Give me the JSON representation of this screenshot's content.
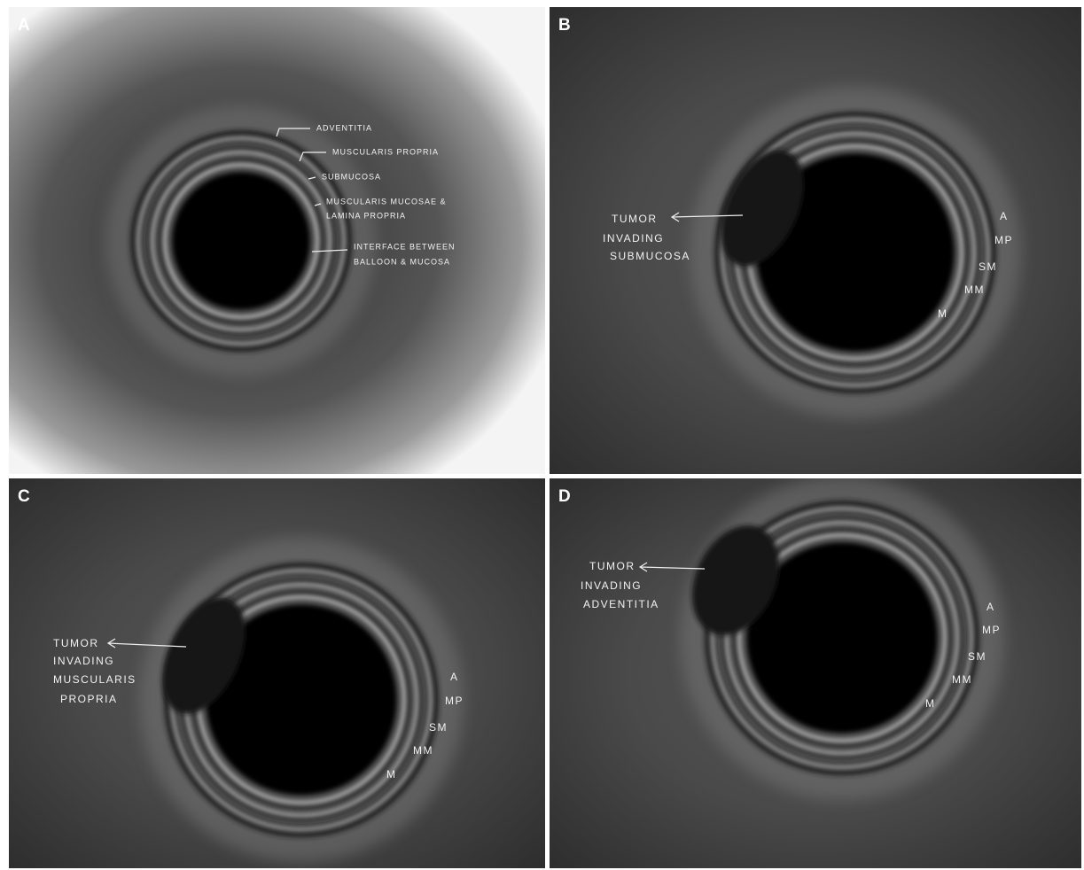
{
  "panels": [
    {
      "label": "A",
      "annotations": [
        [
          "ADVENTITIA"
        ],
        [
          "MUSCULARIS PROPRIA"
        ],
        [
          "SUBMUCOSA"
        ],
        [
          "MUSCULARIS MUCOSAE &",
          "LAMINA PROPRIA"
        ],
        [
          "INTERFACE BETWEEN",
          "BALLOON & MUCOSA"
        ]
      ]
    },
    {
      "label": "B",
      "tumor_label": [
        "TUMOR",
        "INVADING",
        "SUBMUCOSA"
      ],
      "layers": [
        "A",
        "MP",
        "SM",
        "MM",
        "M"
      ]
    },
    {
      "label": "C",
      "tumor_label": [
        "TUMOR",
        "INVADING",
        "MUSCULARIS",
        "PROPRIA"
      ],
      "layers": [
        "A",
        "MP",
        "SM",
        "MM",
        "M"
      ]
    },
    {
      "label": "D",
      "tumor_label": [
        "TUMOR",
        "INVADING",
        "ADVENTITIA"
      ],
      "layers": [
        "A",
        "MP",
        "SM",
        "MM",
        "M"
      ]
    }
  ]
}
